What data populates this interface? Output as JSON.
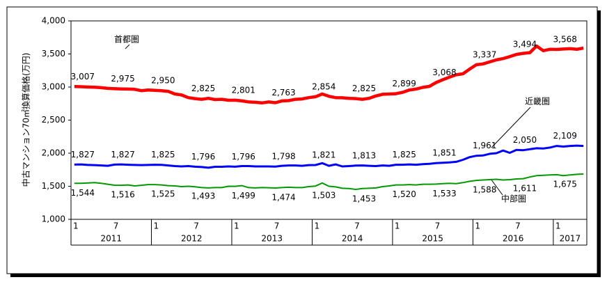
{
  "chart_data": {
    "type": "line",
    "y_label": "中古マンション70㎡換算価格(万円)",
    "ylim": [
      1000,
      4000
    ],
    "yticks": [
      {
        "value": 1000,
        "label": "1,000"
      },
      {
        "value": 1500,
        "label": "1,500"
      },
      {
        "value": 2000,
        "label": "2,000"
      },
      {
        "value": 2500,
        "label": "2,500"
      },
      {
        "value": 3000,
        "label": "3,000"
      },
      {
        "value": 3500,
        "label": "3,500"
      },
      {
        "value": 4000,
        "label": "4,000"
      }
    ],
    "grid": false,
    "categories": [
      "1",
      null,
      null,
      null,
      null,
      null,
      "7",
      null,
      null,
      null,
      null,
      null,
      "1",
      null,
      null,
      null,
      null,
      null,
      "7",
      null,
      null,
      null,
      null,
      null,
      "1",
      null,
      null,
      null,
      null,
      null,
      "7",
      null,
      null,
      null,
      null,
      null,
      "1",
      null,
      null,
      null,
      null,
      null,
      "7",
      null,
      null,
      null,
      null,
      null,
      "1",
      null,
      null,
      null,
      null,
      null,
      "7",
      null,
      null,
      null,
      null,
      null,
      "1",
      null,
      null,
      null,
      null,
      null,
      "7",
      null,
      null,
      null,
      null,
      null,
      "1",
      null,
      null,
      null,
      null
    ],
    "years": [
      "2011",
      "2012",
      "2013",
      "2014",
      "2015",
      "2016",
      "2017"
    ],
    "series": [
      {
        "name": "首都圏",
        "color": "#ff0000",
        "width": 4.5,
        "values": [
          3007,
          3005,
          3000,
          2998,
          2990,
          2980,
          2975,
          2972,
          2970,
          2965,
          2945,
          2955,
          2950,
          2945,
          2935,
          2895,
          2880,
          2840,
          2825,
          2815,
          2830,
          2810,
          2815,
          2800,
          2801,
          2790,
          2775,
          2770,
          2760,
          2775,
          2763,
          2790,
          2795,
          2815,
          2820,
          2840,
          2854,
          2895,
          2860,
          2840,
          2838,
          2830,
          2825,
          2815,
          2830,
          2865,
          2890,
          2895,
          2899,
          2920,
          2955,
          2970,
          2995,
          3010,
          3068,
          3110,
          3150,
          3185,
          3200,
          3270,
          3337,
          3350,
          3380,
          3410,
          3430,
          3460,
          3494,
          3510,
          3520,
          3620,
          3550,
          3570,
          3568,
          3575,
          3580,
          3570,
          3590
        ],
        "value_labels": [
          "3,007",
          null,
          null,
          null,
          null,
          null,
          "2,975",
          null,
          null,
          null,
          null,
          null,
          "2,950",
          null,
          null,
          null,
          null,
          null,
          "2,825",
          null,
          null,
          null,
          null,
          null,
          "2,801",
          null,
          null,
          null,
          null,
          null,
          "2,763",
          null,
          null,
          null,
          null,
          null,
          "2,854",
          null,
          null,
          null,
          null,
          null,
          "2,825",
          null,
          null,
          null,
          null,
          null,
          "2,899",
          null,
          null,
          null,
          null,
          null,
          "3,068",
          null,
          null,
          null,
          null,
          null,
          "3,337",
          null,
          null,
          null,
          null,
          null,
          "3,494",
          null,
          null,
          null,
          null,
          null,
          "3,568",
          null,
          null,
          null,
          null
        ]
      },
      {
        "name": "近畿圏",
        "color": "#0000ff",
        "width": 3,
        "values": [
          1827,
          1830,
          1822,
          1820,
          1815,
          1810,
          1827,
          1830,
          1825,
          1822,
          1820,
          1822,
          1825,
          1823,
          1815,
          1805,
          1800,
          1805,
          1796,
          1790,
          1780,
          1795,
          1795,
          1800,
          1796,
          1805,
          1805,
          1800,
          1800,
          1800,
          1798,
          1810,
          1815,
          1815,
          1810,
          1820,
          1821,
          1850,
          1810,
          1830,
          1800,
          1805,
          1813,
          1815,
          1810,
          1805,
          1815,
          1810,
          1825,
          1825,
          1830,
          1825,
          1835,
          1840,
          1851,
          1855,
          1860,
          1870,
          1900,
          1940,
          1961,
          1965,
          1990,
          2000,
          2040,
          2005,
          2050,
          2045,
          2060,
          2075,
          2070,
          2085,
          2109,
          2100,
          2110,
          2115,
          2110
        ],
        "value_labels": [
          "1,827",
          null,
          null,
          null,
          null,
          null,
          "1,827",
          null,
          null,
          null,
          null,
          null,
          "1,825",
          null,
          null,
          null,
          null,
          null,
          "1,796",
          null,
          null,
          null,
          null,
          null,
          "1,796",
          null,
          null,
          null,
          null,
          null,
          "1,798",
          null,
          null,
          null,
          null,
          null,
          "1,821",
          null,
          null,
          null,
          null,
          null,
          "1,813",
          null,
          null,
          null,
          null,
          null,
          "1,825",
          null,
          null,
          null,
          null,
          null,
          "1,851",
          null,
          null,
          null,
          null,
          null,
          "1,961",
          null,
          null,
          null,
          null,
          null,
          "2,050",
          null,
          null,
          null,
          null,
          null,
          "2,109",
          null,
          null,
          null,
          null
        ]
      },
      {
        "name": "中部圏",
        "color": "#009900",
        "width": 2,
        "values": [
          1544,
          1545,
          1550,
          1555,
          1545,
          1530,
          1516,
          1515,
          1520,
          1505,
          1515,
          1525,
          1525,
          1520,
          1510,
          1505,
          1495,
          1500,
          1493,
          1480,
          1475,
          1480,
          1480,
          1500,
          1499,
          1510,
          1480,
          1475,
          1480,
          1478,
          1474,
          1480,
          1485,
          1480,
          1480,
          1495,
          1503,
          1550,
          1500,
          1490,
          1470,
          1465,
          1453,
          1465,
          1470,
          1475,
          1495,
          1505,
          1520,
          1520,
          1525,
          1520,
          1530,
          1530,
          1533,
          1540,
          1545,
          1540,
          1555,
          1575,
          1588,
          1595,
          1600,
          1605,
          1595,
          1600,
          1611,
          1615,
          1640,
          1660,
          1665,
          1670,
          1675,
          1660,
          1670,
          1680,
          1685
        ],
        "value_labels": [
          "1,544",
          null,
          null,
          null,
          null,
          null,
          "1,516",
          null,
          null,
          null,
          null,
          null,
          "1,525",
          null,
          null,
          null,
          null,
          null,
          "1,493",
          null,
          null,
          null,
          null,
          null,
          "1,499",
          null,
          null,
          null,
          null,
          null,
          "1,474",
          null,
          null,
          null,
          null,
          null,
          "1,503",
          null,
          null,
          null,
          null,
          null,
          "1,453",
          null,
          null,
          null,
          null,
          null,
          "1,520",
          null,
          null,
          null,
          null,
          null,
          "1,533",
          null,
          null,
          null,
          null,
          null,
          "1,588",
          null,
          null,
          null,
          null,
          null,
          "1,611",
          null,
          null,
          null,
          null,
          null,
          "1,675",
          null,
          null,
          null,
          null
        ]
      }
    ]
  }
}
